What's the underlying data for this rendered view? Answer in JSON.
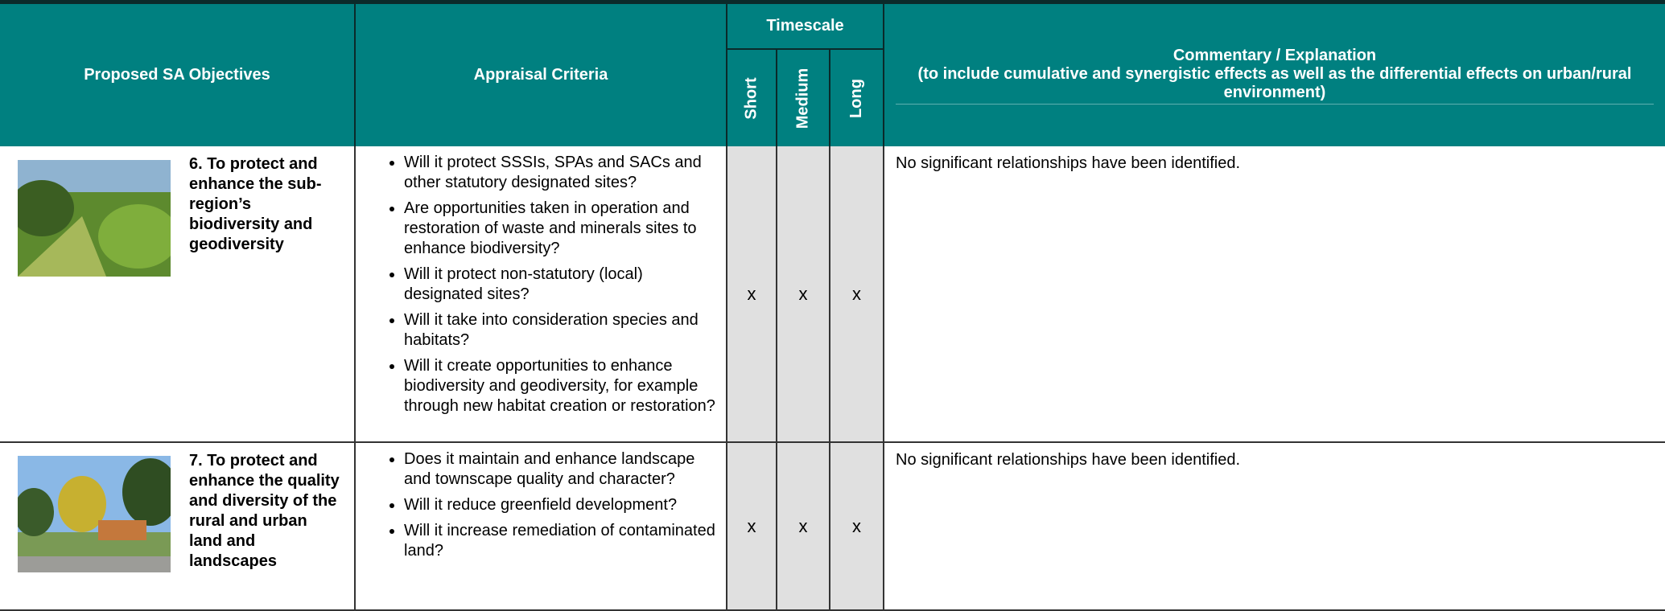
{
  "header": {
    "objectives": "Proposed SA Objectives",
    "criteria": "Appraisal Criteria",
    "timescale": "Timescale",
    "short": "Short",
    "medium": "Medium",
    "long": "Long",
    "commentary_title": "Commentary / Explanation",
    "commentary_note": "(to include cumulative and synergistic effects as well as the differential effects on urban/rural environment)"
  },
  "rows": [
    {
      "objective": "6. To protect and enhance the sub-region’s biodiversity and geodiversity",
      "criteria": [
        "Will it protect SSSIs, SPAs and SACs and other statutory designated sites?",
        "Are opportunities taken in operation and restoration of waste and minerals sites to enhance biodiversity?",
        "Will it protect non-statutory (local) designated sites?",
        "Will it take into consideration species and habitats?",
        "Will it create opportunities to enhance biodiversity and geodiversity, for example through new habitat creation or restoration?"
      ],
      "short": "x",
      "medium": "x",
      "long": "x",
      "commentary": "No significant relationships have been identified."
    },
    {
      "objective": "7. To protect and enhance the quality and diversity of the rural and urban land and landscapes",
      "criteria": [
        "Does it maintain and enhance landscape and townscape quality and character?",
        "Will it reduce greenfield development?",
        "Will it increase remediation of contaminated land?"
      ],
      "short": "x",
      "medium": "x",
      "long": "x",
      "commentary": "No significant relationships have been identified."
    }
  ]
}
